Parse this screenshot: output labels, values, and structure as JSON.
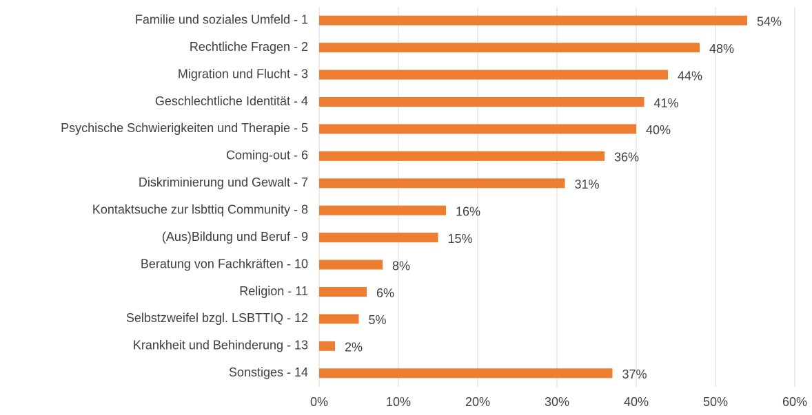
{
  "chart_data": {
    "type": "bar",
    "orientation": "horizontal",
    "categories": [
      "Familie und soziales Umfeld - 1",
      "Rechtliche Fragen - 2",
      "Migration und Flucht - 3",
      "Geschlechtliche Identität - 4",
      "Psychische Schwierigkeiten und Therapie - 5",
      "Coming-out - 6",
      "Diskriminierung und Gewalt - 7",
      "Kontaktsuche zur lsbttiq Community - 8",
      "(Aus)Bildung und Beruf - 9",
      "Beratung von Fachkräften - 10",
      "Religion - 11",
      "Selbstzweifel bzgl. LSBTTIQ  - 12",
      "Krankheit und Behinderung - 13",
      "Sonstiges - 14"
    ],
    "values": [
      54,
      48,
      44,
      41,
      40,
      36,
      31,
      16,
      15,
      8,
      6,
      5,
      2,
      37
    ],
    "value_labels": [
      "54%",
      "48%",
      "44%",
      "41%",
      "40%",
      "36%",
      "31%",
      "16%",
      "15%",
      "8%",
      "6%",
      "5%",
      "2%",
      "37%"
    ],
    "color": "#ed7d31",
    "xlim": [
      0,
      60
    ],
    "xticks": [
      {
        "value": 0,
        "label": "0%"
      },
      {
        "value": 10,
        "label": "10%"
      },
      {
        "value": 20,
        "label": "20%"
      },
      {
        "value": 30,
        "label": "30%"
      },
      {
        "value": 40,
        "label": "40%"
      },
      {
        "value": 50,
        "label": "50%"
      },
      {
        "value": 60,
        "label": "60%"
      }
    ],
    "grid": true
  }
}
